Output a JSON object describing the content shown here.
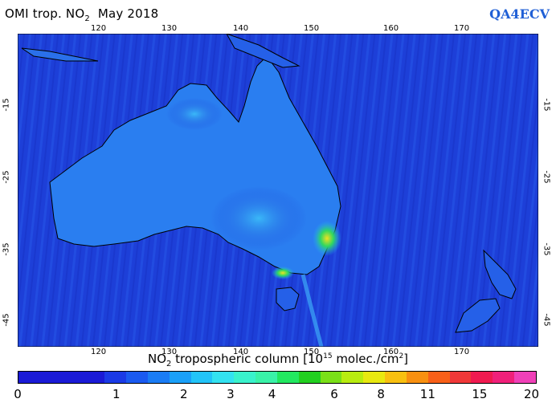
{
  "title": {
    "prefix": "OMI trop. NO",
    "subscript": "2",
    "period": "May 2018"
  },
  "brand": "QA4ECV",
  "map": {
    "lon_ticks": [
      "120",
      "130",
      "140",
      "150",
      "160",
      "170"
    ],
    "lat_ticks": [
      "-15",
      "-25",
      "-35",
      "-45"
    ],
    "ocean_color": "#1d3fd8"
  },
  "colorbar": {
    "title_prefix": "NO",
    "title_sub": "2",
    "title_main": " tropospheric column [10",
    "title_sup": "15",
    "title_suffix": " molec./cm",
    "title_sup2": "2",
    "title_end": "]",
    "labels": [
      "0",
      "1",
      "2",
      "3",
      "4",
      "6",
      "8",
      "11",
      "15",
      "20"
    ],
    "colors": [
      "#1a1ad6",
      "#1a1ad6",
      "#1a1ad6",
      "#1a1ad6",
      "#1a3ae6",
      "#1a5af0",
      "#1a7cf4",
      "#1aa0f8",
      "#22c4f8",
      "#33e2f0",
      "#3af2cc",
      "#3af2a8",
      "#22e860",
      "#22d020",
      "#7ae018",
      "#b8ec10",
      "#e8e810",
      "#f8c010",
      "#f89010",
      "#f86018",
      "#f03838",
      "#f01a50",
      "#f0207a",
      "#f040b8"
    ]
  }
}
